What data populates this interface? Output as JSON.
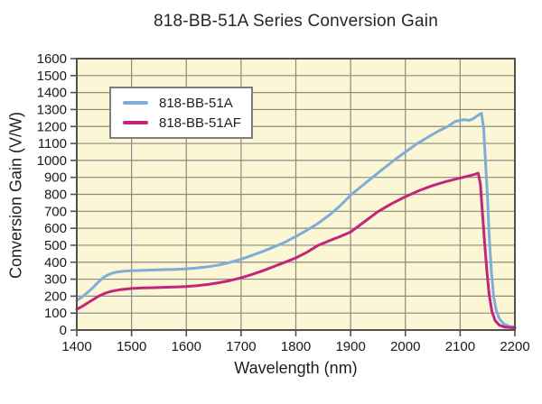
{
  "chart_data": {
    "type": "line",
    "title": "818-BB-51A Series Conversion Gain",
    "xlabel": "Wavelength (nm)",
    "ylabel": "Conversion Gain (V/W)",
    "xlim": [
      1400,
      2200
    ],
    "ylim": [
      0,
      1600
    ],
    "xticks": [
      1400,
      1500,
      1600,
      1700,
      1800,
      1900,
      2000,
      2100,
      2200
    ],
    "yticks": [
      0,
      100,
      200,
      300,
      400,
      500,
      600,
      700,
      800,
      900,
      1000,
      1100,
      1200,
      1300,
      1400,
      1500,
      1600
    ],
    "grid": true,
    "legend_position": "upper-left-inside",
    "colors": {
      "plot_bg": "#FBF6D3",
      "grid": "#8D8A84",
      "border": "#53514C",
      "text": "#1A1A1A",
      "series_blue": "#7FACD8",
      "series_pink": "#C2267C"
    },
    "series": [
      {
        "name": "818-BB-51A",
        "color": "#7FACD8",
        "points": [
          [
            1400,
            175
          ],
          [
            1410,
            196
          ],
          [
            1420,
            222
          ],
          [
            1430,
            252
          ],
          [
            1440,
            285
          ],
          [
            1450,
            313
          ],
          [
            1460,
            330
          ],
          [
            1470,
            340
          ],
          [
            1480,
            345
          ],
          [
            1490,
            348
          ],
          [
            1500,
            350
          ],
          [
            1520,
            352
          ],
          [
            1540,
            354
          ],
          [
            1560,
            356
          ],
          [
            1580,
            358
          ],
          [
            1600,
            361
          ],
          [
            1620,
            366
          ],
          [
            1640,
            373
          ],
          [
            1660,
            384
          ],
          [
            1680,
            399
          ],
          [
            1700,
            418
          ],
          [
            1720,
            440
          ],
          [
            1740,
            464
          ],
          [
            1760,
            490
          ],
          [
            1780,
            518
          ],
          [
            1800,
            552
          ],
          [
            1820,
            588
          ],
          [
            1840,
            628
          ],
          [
            1860,
            675
          ],
          [
            1880,
            730
          ],
          [
            1900,
            795
          ],
          [
            1920,
            848
          ],
          [
            1940,
            900
          ],
          [
            1960,
            952
          ],
          [
            1980,
            1002
          ],
          [
            2000,
            1050
          ],
          [
            2020,
            1096
          ],
          [
            2040,
            1135
          ],
          [
            2060,
            1172
          ],
          [
            2080,
            1205
          ],
          [
            2090,
            1228
          ],
          [
            2100,
            1236
          ],
          [
            2108,
            1240
          ],
          [
            2116,
            1236
          ],
          [
            2124,
            1246
          ],
          [
            2132,
            1264
          ],
          [
            2139,
            1278
          ],
          [
            2143,
            1190
          ],
          [
            2147,
            950
          ],
          [
            2150,
            780
          ],
          [
            2153,
            560
          ],
          [
            2157,
            350
          ],
          [
            2161,
            200
          ],
          [
            2166,
            115
          ],
          [
            2172,
            65
          ],
          [
            2180,
            35
          ],
          [
            2190,
            22
          ],
          [
            2200,
            18
          ]
        ]
      },
      {
        "name": "818-BB-51AF",
        "color": "#C2267C",
        "points": [
          [
            1400,
            122
          ],
          [
            1410,
            140
          ],
          [
            1420,
            160
          ],
          [
            1430,
            180
          ],
          [
            1440,
            200
          ],
          [
            1450,
            215
          ],
          [
            1460,
            226
          ],
          [
            1470,
            233
          ],
          [
            1480,
            238
          ],
          [
            1490,
            242
          ],
          [
            1500,
            245
          ],
          [
            1520,
            248
          ],
          [
            1540,
            250
          ],
          [
            1560,
            252
          ],
          [
            1580,
            254
          ],
          [
            1600,
            257
          ],
          [
            1620,
            262
          ],
          [
            1640,
            269
          ],
          [
            1660,
            279
          ],
          [
            1680,
            292
          ],
          [
            1700,
            308
          ],
          [
            1720,
            328
          ],
          [
            1740,
            350
          ],
          [
            1760,
            375
          ],
          [
            1780,
            400
          ],
          [
            1800,
            425
          ],
          [
            1820,
            458
          ],
          [
            1840,
            498
          ],
          [
            1860,
            525
          ],
          [
            1880,
            550
          ],
          [
            1900,
            578
          ],
          [
            1925,
            638
          ],
          [
            1950,
            698
          ],
          [
            1975,
            745
          ],
          [
            2000,
            786
          ],
          [
            2025,
            822
          ],
          [
            2050,
            852
          ],
          [
            2075,
            876
          ],
          [
            2100,
            896
          ],
          [
            2110,
            904
          ],
          [
            2120,
            912
          ],
          [
            2127,
            918
          ],
          [
            2133,
            925
          ],
          [
            2137,
            860
          ],
          [
            2141,
            680
          ],
          [
            2145,
            500
          ],
          [
            2149,
            340
          ],
          [
            2153,
            210
          ],
          [
            2158,
            110
          ],
          [
            2164,
            55
          ],
          [
            2172,
            28
          ],
          [
            2182,
            17
          ],
          [
            2200,
            13
          ]
        ]
      }
    ]
  }
}
